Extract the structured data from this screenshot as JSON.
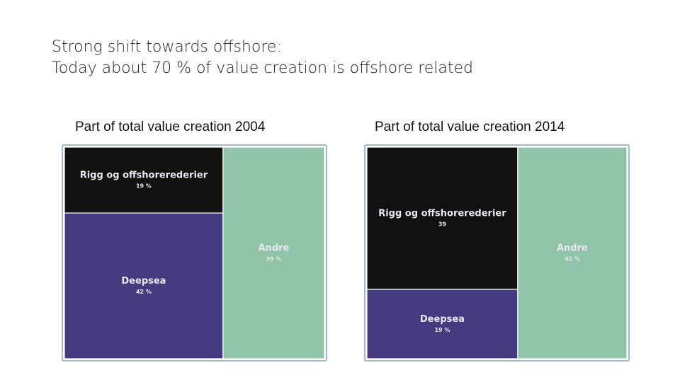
{
  "slide": {
    "title_line1": "Strong shift towards offshore:",
    "title_line2": "Today about 70 % of value creation is offshore related"
  },
  "colors": {
    "rigg": "#111111",
    "deepsea": "#433a80",
    "andre": "#8fc4a9",
    "label_light": "#e8e8ee"
  },
  "chart_data": [
    {
      "type": "treemap",
      "title": "Part of total value creation  2004",
      "items": [
        {
          "key": "rigg",
          "name": "Rigg og offshorerederier",
          "value": 19,
          "label": "19 %"
        },
        {
          "key": "deepsea",
          "name": "Deepsea",
          "value": 42,
          "label": "42 %"
        },
        {
          "key": "andre",
          "name": "Andre",
          "value": 39,
          "label": "39 %"
        }
      ]
    },
    {
      "type": "treemap",
      "title": "Part of total value creation 2014",
      "items": [
        {
          "key": "rigg",
          "name": "Rigg og offshorerederier",
          "value": 39,
          "label": "39"
        },
        {
          "key": "deepsea",
          "name": "Deepsea",
          "value": 19,
          "label": "19 %"
        },
        {
          "key": "andre",
          "name": "Andre",
          "value": 42,
          "label": "42 %"
        }
      ]
    }
  ]
}
